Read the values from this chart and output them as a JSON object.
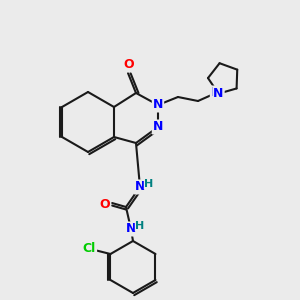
{
  "background_color": "#ebebeb",
  "bond_color": "#1a1a1a",
  "atom_colors": {
    "N": "#0000ff",
    "O": "#ff0000",
    "Cl": "#00cc00",
    "H": "#008080"
  },
  "figsize": [
    3.0,
    3.0
  ],
  "dpi": 100
}
